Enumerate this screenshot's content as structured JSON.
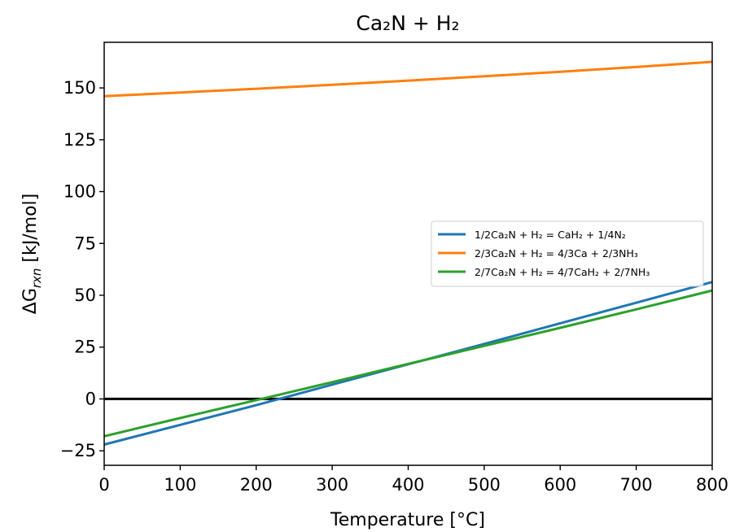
{
  "chart_data": {
    "type": "line",
    "title": "Ca₂N + H₂",
    "xlabel": "Temperature [°C]",
    "ylabel_prefix": "ΔG",
    "ylabel_subscript": "rxn",
    "ylabel_suffix": " [kJ/mol]",
    "xlim": [
      0,
      800
    ],
    "ylim": [
      -32,
      172
    ],
    "xticks": [
      0,
      100,
      200,
      300,
      400,
      500,
      600,
      700,
      800
    ],
    "yticks": [
      -25,
      0,
      25,
      50,
      75,
      100,
      125,
      150
    ],
    "ytick_labels": [
      "−25",
      "0",
      "25",
      "50",
      "75",
      "100",
      "125",
      "150"
    ],
    "grid": false,
    "legend_position": "center-right",
    "reference_line": {
      "y": 0,
      "color": "#000000"
    },
    "series": [
      {
        "name": "1/2Ca₂N + H₂ = CaH₂ + 1/4N₂",
        "color": "#1f77b4",
        "x": [
          0,
          100,
          200,
          300,
          400,
          500,
          600,
          700,
          800
        ],
        "values": [
          -22,
          -12.5,
          -3,
          6.9,
          16.7,
          26.5,
          36.5,
          46.4,
          56.4
        ]
      },
      {
        "name": "2/3Ca₂N + H₂ = 4/3Ca + 2/3NH₃",
        "color": "#ff7f0e",
        "x": [
          0,
          100,
          200,
          300,
          400,
          500,
          600,
          700,
          800
        ],
        "values": [
          146,
          147.8,
          149.6,
          151.5,
          153.5,
          155.6,
          157.8,
          160.1,
          162.6
        ]
      },
      {
        "name": "2/7Ca₂N + H₂ = 4/7CaH₂ + 2/7NH₃",
        "color": "#2ca02c",
        "x": [
          0,
          100,
          200,
          300,
          400,
          500,
          600,
          700,
          800
        ],
        "values": [
          -18,
          -9.2,
          -0.6,
          8.1,
          16.9,
          25.6,
          34.3,
          43.2,
          52.3
        ]
      }
    ]
  }
}
